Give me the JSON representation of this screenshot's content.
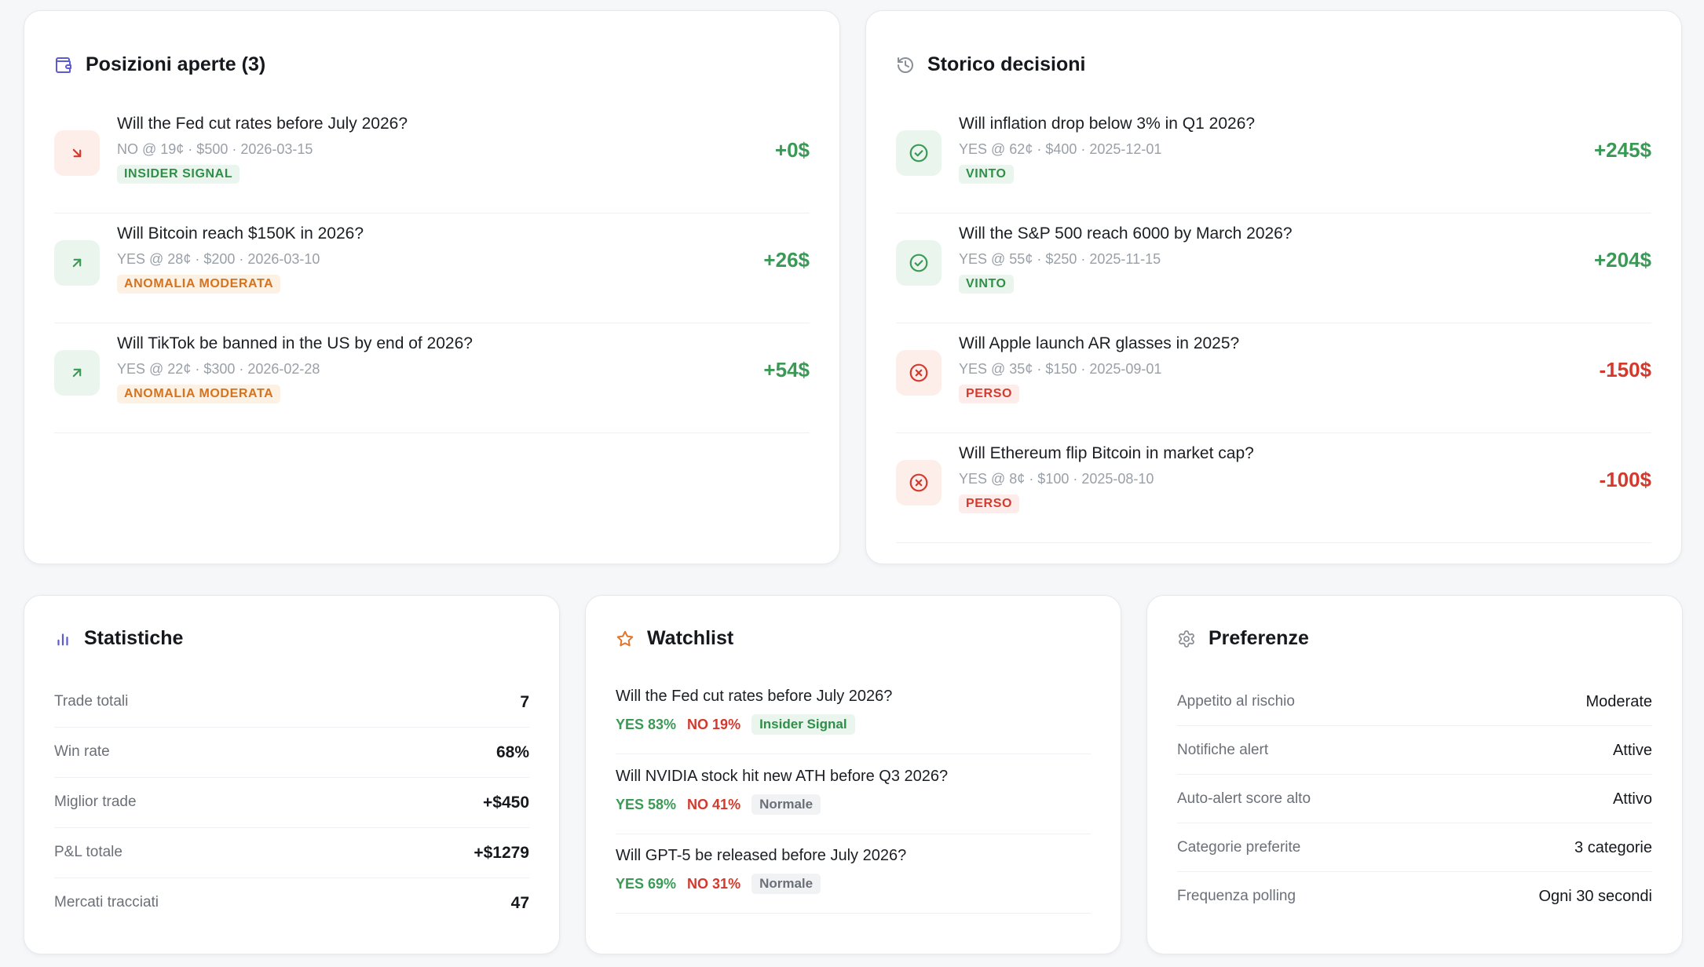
{
  "positions": {
    "title": "Posizioni aperte (3)",
    "items": [
      {
        "title": "Will the Fed cut rates before July 2026?",
        "meta": "NO @ 19¢ · $500 · 2026-03-15",
        "tag": "INSIDER SIGNAL",
        "amount": "+0$"
      },
      {
        "title": "Will Bitcoin reach $150K in 2026?",
        "meta": "YES @ 28¢ · $200 · 2026-03-10",
        "tag": "ANOMALIA MODERATA",
        "amount": "+26$"
      },
      {
        "title": "Will TikTok be banned in the US by end of 2026?",
        "meta": "YES @ 22¢ · $300 · 2026-02-28",
        "tag": "ANOMALIA MODERATA",
        "amount": "+54$"
      }
    ]
  },
  "history": {
    "title": "Storico decisioni",
    "items": [
      {
        "title": "Will inflation drop below 3% in Q1 2026?",
        "meta": "YES @ 62¢ · $400 · 2025-12-01",
        "tag": "VINTO",
        "amount": "+245$"
      },
      {
        "title": "Will the S&P 500 reach 6000 by March 2026?",
        "meta": "YES @ 55¢ · $250 · 2025-11-15",
        "tag": "VINTO",
        "amount": "+204$"
      },
      {
        "title": "Will Apple launch AR glasses in 2025?",
        "meta": "YES @ 35¢ · $150 · 2025-09-01",
        "tag": "PERSO",
        "amount": "-150$"
      },
      {
        "title": "Will Ethereum flip Bitcoin in market cap?",
        "meta": "YES @ 8¢ · $100 · 2025-08-10",
        "tag": "PERSO",
        "amount": "-100$"
      }
    ]
  },
  "stats": {
    "title": "Statistiche",
    "rows": [
      {
        "label": "Trade totali",
        "value": "7"
      },
      {
        "label": "Win rate",
        "value": "68%"
      },
      {
        "label": "Miglior trade",
        "value": "+$450"
      },
      {
        "label": "P&L totale",
        "value": "+$1279"
      },
      {
        "label": "Mercati tracciati",
        "value": "47"
      }
    ]
  },
  "watchlist": {
    "title": "Watchlist",
    "items": [
      {
        "title": "Will the Fed cut rates before July 2026?",
        "yes": "YES 83%",
        "no": "NO 19%",
        "tag": "Insider Signal"
      },
      {
        "title": "Will NVIDIA stock hit new ATH before Q3 2026?",
        "yes": "YES 58%",
        "no": "NO 41%",
        "tag": "Normale"
      },
      {
        "title": "Will GPT-5 be released before July 2026?",
        "yes": "YES 69%",
        "no": "NO 31%",
        "tag": "Normale"
      }
    ]
  },
  "preferences": {
    "title": "Preferenze",
    "rows": [
      {
        "label": "Appetito al rischio",
        "value": "Moderate"
      },
      {
        "label": "Notifiche alert",
        "value": "Attive"
      },
      {
        "label": "Auto-alert score alto",
        "value": "Attivo"
      },
      {
        "label": "Categorie preferite",
        "value": "3 categorie"
      },
      {
        "label": "Frequenza polling",
        "value": "Ogni 30 secondi"
      }
    ]
  },
  "icons": {
    "positions_header": "wallet-icon",
    "history_header": "history-icon",
    "stats_header": "bar-chart-icon",
    "watchlist_header": "star-icon",
    "preferences_header": "gear-icon",
    "position_down": "arrow-down-right-icon",
    "position_up": "arrow-up-right-icon",
    "win": "check-circle-icon",
    "loss": "x-circle-icon"
  },
  "colors": {
    "accent": "#5b5bd6",
    "positive": "#3a9a55",
    "negative": "#d3392c",
    "warning": "#d3731f",
    "star": "#e0762b"
  }
}
